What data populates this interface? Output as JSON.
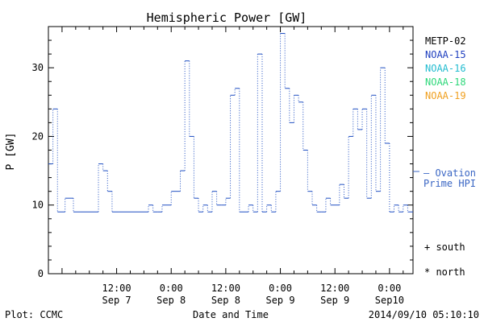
{
  "chart_data": {
    "type": "line",
    "title": "Hemispheric Power [GW]",
    "ylabel": "P [GW]",
    "xlabel": "Date and Time",
    "ylim": [
      0,
      36
    ],
    "xlim": [
      "2014-09-06T21:00",
      "2014-09-10T05:10"
    ],
    "yticks": [
      0,
      10,
      20,
      30
    ],
    "xticks": [
      {
        "at": "2014-09-07T12:00",
        "time": "12:00",
        "date": "Sep 7"
      },
      {
        "at": "2014-09-08T00:00",
        "time": "0:00",
        "date": "Sep 8"
      },
      {
        "at": "2014-09-08T12:00",
        "time": "12:00",
        "date": "Sep 8"
      },
      {
        "at": "2014-09-09T00:00",
        "time": "0:00",
        "date": "Sep 9"
      },
      {
        "at": "2014-09-09T12:00",
        "time": "12:00",
        "date": "Sep 9"
      },
      {
        "at": "2014-09-10T00:00",
        "time": "0:00",
        "date": "Sep10"
      }
    ],
    "legend": [
      {
        "name": "METP-02",
        "color": "#000000"
      },
      {
        "name": "NOAA-15",
        "color": "#1f3fbf"
      },
      {
        "name": "NOAA-16",
        "color": "#22bcd0"
      },
      {
        "name": "NOAA-18",
        "color": "#2ed87a"
      },
      {
        "name": "NOAA-19",
        "color": "#f0a020"
      }
    ],
    "model_label": [
      "— Ovation",
      "Prime HPI"
    ],
    "model_color": "#3a66c4",
    "markers": [
      "+ south",
      "* north"
    ],
    "series": [
      {
        "name": "Ovation Prime HPI",
        "color": "#1f4fc2",
        "style": "step",
        "x": [
          "2014-09-06T21:00",
          "2014-09-06T22:00",
          "2014-09-06T23:00",
          "2014-09-07T00:40",
          "2014-09-07T02:30",
          "2014-09-07T04:00",
          "2014-09-07T08:00",
          "2014-09-07T09:00",
          "2014-09-07T10:00",
          "2014-09-07T11:00",
          "2014-09-07T12:30",
          "2014-09-07T19:00",
          "2014-09-07T20:00",
          "2014-09-07T21:00",
          "2014-09-07T22:00",
          "2014-09-08T00:00",
          "2014-09-08T02:00",
          "2014-09-08T03:00",
          "2014-09-08T04:00",
          "2014-09-08T05:00",
          "2014-09-08T06:00",
          "2014-09-08T07:00",
          "2014-09-08T08:00",
          "2014-09-08T09:00",
          "2014-09-08T10:00",
          "2014-09-08T11:00",
          "2014-09-08T12:00",
          "2014-09-08T13:00",
          "2014-09-08T14:00",
          "2014-09-08T15:00",
          "2014-09-08T17:00",
          "2014-09-08T18:00",
          "2014-09-08T19:00",
          "2014-09-08T20:00",
          "2014-09-08T21:00",
          "2014-09-08T22:00",
          "2014-09-08T23:00",
          "2014-09-09T00:00",
          "2014-09-09T01:00",
          "2014-09-09T02:00",
          "2014-09-09T03:00",
          "2014-09-09T04:00",
          "2014-09-09T05:00",
          "2014-09-09T06:00",
          "2014-09-09T07:00",
          "2014-09-09T08:00",
          "2014-09-09T09:00",
          "2014-09-09T10:00",
          "2014-09-09T11:00",
          "2014-09-09T13:00",
          "2014-09-09T14:00",
          "2014-09-09T15:00",
          "2014-09-09T16:00",
          "2014-09-09T17:00",
          "2014-09-09T18:00",
          "2014-09-09T19:00",
          "2014-09-09T20:00",
          "2014-09-09T21:00",
          "2014-09-09T22:00",
          "2014-09-09T23:00",
          "2014-09-10T00:00",
          "2014-09-10T01:00",
          "2014-09-10T02:00",
          "2014-09-10T03:00",
          "2014-09-10T04:00"
        ],
        "y": [
          16,
          24,
          9,
          11,
          9,
          9,
          16,
          15,
          12,
          9,
          9,
          10,
          9,
          9,
          10,
          12,
          15,
          31,
          20,
          11,
          9,
          10,
          9,
          12,
          10,
          10,
          11,
          26,
          27,
          9,
          10,
          9,
          32,
          9,
          10,
          9,
          12,
          35,
          27,
          22,
          26,
          25,
          18,
          12,
          10,
          9,
          9,
          11,
          10,
          13,
          11,
          20,
          24,
          21,
          24,
          11,
          26,
          12,
          30,
          19,
          9,
          10,
          9,
          10,
          9
        ]
      }
    ]
  },
  "footer": {
    "left": "Plot: CCMC",
    "right": "2014/09/10 05:10:10"
  }
}
